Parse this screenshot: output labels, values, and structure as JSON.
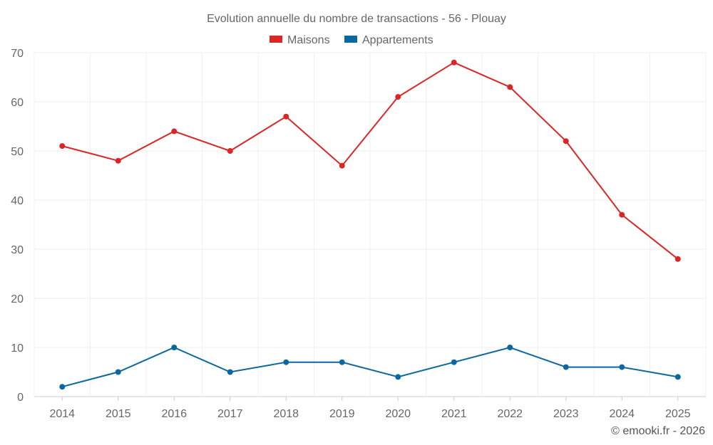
{
  "chart_data": {
    "type": "line",
    "title": "Evolution annuelle du nombre de transactions - 56 - Plouay",
    "categories": [
      "2014",
      "2015",
      "2016",
      "2017",
      "2018",
      "2019",
      "2020",
      "2021",
      "2022",
      "2023",
      "2024",
      "2025"
    ],
    "series": [
      {
        "name": "Maisons",
        "color": "#dc2626",
        "values": [
          51,
          48,
          54,
          50,
          57,
          47,
          61,
          68,
          63,
          52,
          37,
          28
        ]
      },
      {
        "name": "Appartements",
        "color": "#0b67a0",
        "values": [
          2,
          5,
          10,
          5,
          7,
          7,
          4,
          7,
          10,
          6,
          6,
          4
        ]
      }
    ],
    "ylim": [
      0,
      70
    ],
    "yticks": [
      "0",
      "10",
      "20",
      "30",
      "40",
      "50",
      "60",
      "70"
    ],
    "grid": true,
    "legend": "top-center",
    "xlabel": "",
    "ylabel": ""
  },
  "credit": "© emooki.fr - 2026"
}
